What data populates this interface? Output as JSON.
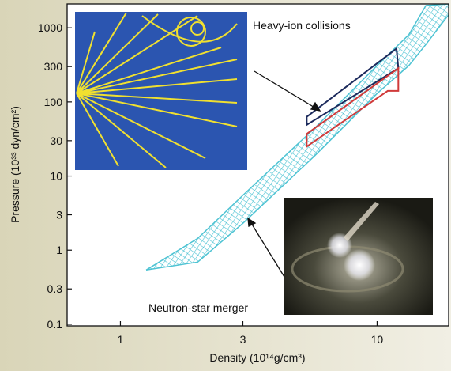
{
  "chart_data": {
    "type": "band",
    "xlabel": "Density (10¹⁴g/cm³)",
    "ylabel": "Pressure (10³³ dyn/cm²)",
    "xscale": "log",
    "yscale": "log",
    "xlim": [
      0.62,
      19
    ],
    "ylim": [
      0.095,
      2100
    ],
    "xticks": [
      1,
      3,
      10
    ],
    "yticks": [
      0.1,
      0.3,
      1,
      3,
      10,
      30,
      100,
      300,
      1000
    ],
    "band": {
      "color": "#4ec3d3",
      "x": [
        1.26,
        2,
        3,
        5.7,
        10,
        13.3,
        15.5,
        19
      ],
      "upper": [
        0.54,
        1.44,
        5.5,
        44,
        310,
        810,
        2000,
        2100
      ],
      "lower": [
        0.54,
        0.69,
        2.3,
        18.6,
        130,
        310,
        600,
        1500
      ]
    },
    "regions": [
      {
        "color": "#1c2a5c",
        "x": [
          5.32,
          5.32,
          11.9,
          12.1
        ],
        "y": [
          49,
          63,
          525,
          285
        ]
      },
      {
        "color": "#d03a3a",
        "x": [
          5.32,
          5.32,
          12.1,
          12.1,
          11
        ],
        "y": [
          25,
          37,
          285,
          141,
          141
        ]
      }
    ],
    "annotations": [
      "Heavy-ion collisions",
      "Neutron-star merger"
    ]
  }
}
